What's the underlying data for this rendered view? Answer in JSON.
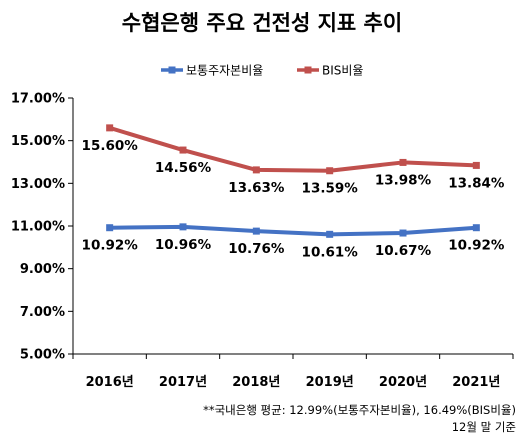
{
  "chart_data": {
    "type": "line",
    "title": "수협은행 주요 건전성 지표 추이",
    "categories": [
      "2016년",
      "2017년",
      "2018년",
      "2019년",
      "2020년",
      "2021년"
    ],
    "series": [
      {
        "name": "보통주자본비율",
        "values": [
          10.92,
          10.96,
          10.76,
          10.61,
          10.67,
          10.92
        ],
        "labels": [
          "10.92%",
          "10.96%",
          "10.76%",
          "10.61%",
          "10.67%",
          "10.92%"
        ],
        "color": "#4472C4"
      },
      {
        "name": "BIS비율",
        "values": [
          15.6,
          14.56,
          13.63,
          13.59,
          13.98,
          13.84
        ],
        "labels": [
          "15.60%",
          "14.56%",
          "13.63%",
          "13.59%",
          "13.98%",
          "13.84%"
        ],
        "color": "#C0504D"
      }
    ],
    "ylim": [
      5,
      17
    ],
    "yticks": [
      5,
      7,
      9,
      11,
      13,
      15,
      17
    ],
    "ytick_labels": [
      "5.00%",
      "7.00%",
      "9.00%",
      "11.00%",
      "13.00%",
      "15.00%",
      "17.00%"
    ],
    "legend_position": "top-center",
    "grid": false
  },
  "footnote": {
    "line1": "**국내은행 평균: 12.99%(보통주자본비율), 16.49%(BIS비율)",
    "line2": "12월 말 기준"
  }
}
